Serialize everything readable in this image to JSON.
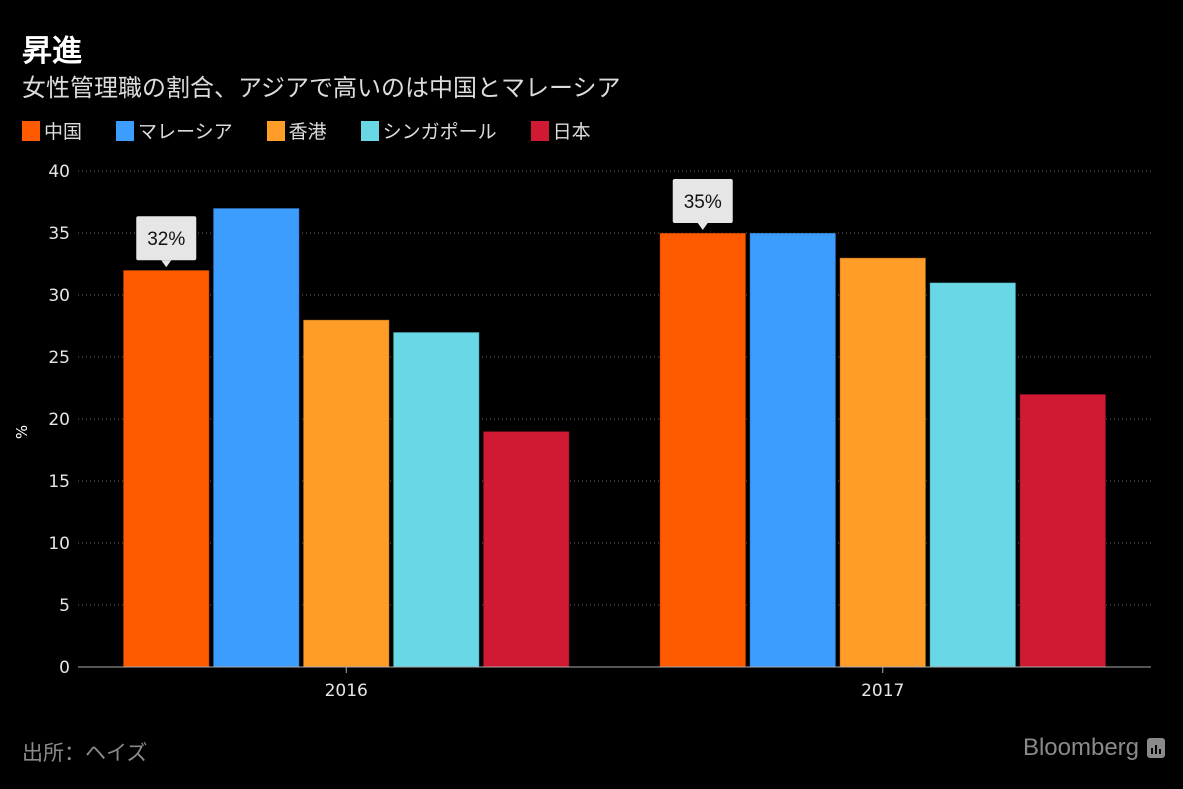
{
  "header": {
    "title": "昇進",
    "subtitle": "女性管理職の割合、アジアで高いのは中国とマレーシア"
  },
  "footer": {
    "source": "出所：ヘイズ",
    "brand": "Bloomberg",
    "brand_icon": "bloomberg-chart-icon"
  },
  "chart_data": {
    "type": "bar",
    "title": "昇進",
    "subtitle": "女性管理職の割合、アジアで高いのは中国とマレーシア",
    "xlabel": "",
    "ylabel": "%",
    "ylim": [
      0,
      40
    ],
    "yticks": [
      0,
      5,
      10,
      15,
      20,
      25,
      30,
      35,
      40
    ],
    "grid": true,
    "legend_position": "top-left",
    "categories": [
      "2016",
      "2017"
    ],
    "series": [
      {
        "name": "中国",
        "color": "#ff5a00",
        "values": [
          32,
          35
        ]
      },
      {
        "name": "マレーシア",
        "color": "#3d9dff",
        "values": [
          37,
          35
        ]
      },
      {
        "name": "香港",
        "color": "#ff9d28",
        "values": [
          28,
          33
        ]
      },
      {
        "name": "シンガポール",
        "color": "#68d8e6",
        "values": [
          27,
          31
        ]
      },
      {
        "name": "日本",
        "color": "#d01932",
        "values": [
          19,
          22
        ]
      }
    ],
    "annotations": [
      {
        "series": "中国",
        "category": "2016",
        "text": "32%"
      },
      {
        "series": "中国",
        "category": "2017",
        "text": "35%"
      }
    ]
  }
}
